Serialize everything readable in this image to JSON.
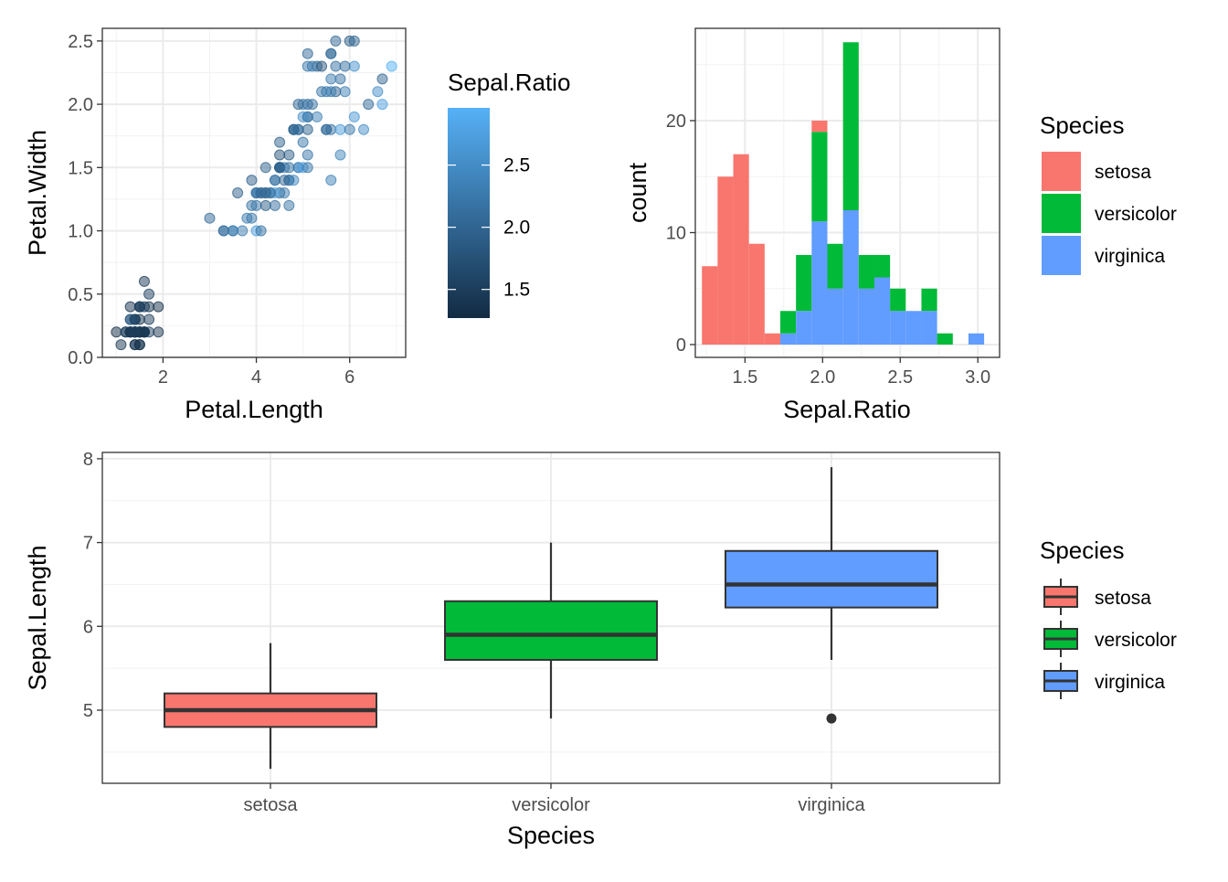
{
  "colors": {
    "setosa": "#F8766D",
    "versicolor": "#00BA38",
    "virginica": "#619CFF",
    "gradient_low": "#132B43",
    "gradient_high": "#56B1F7"
  },
  "chart_data": [
    {
      "type": "scatter",
      "xlabel": "Petal.Length",
      "ylabel": "Petal.Width",
      "xlim": [
        0.7,
        7.2
      ],
      "ylim": [
        0,
        2.6
      ],
      "xticks": [
        2,
        4,
        6
      ],
      "xtick_labels": [
        "2",
        "4",
        "6"
      ],
      "yticks": [
        0,
        0.5,
        1,
        1.5,
        2,
        2.5
      ],
      "ytick_labels": [
        "0.0",
        "0.5",
        "1.0",
        "1.5",
        "2.0",
        "2.5"
      ],
      "color_scale": {
        "title": "Sepal.Ratio",
        "min": 1.27,
        "max": 2.96,
        "ticks": [
          1.5,
          2.0,
          2.5
        ],
        "tick_labels": [
          "1.5",
          "2.0",
          "2.5"
        ]
      },
      "grid": true,
      "legend_position": "right",
      "points": [
        {
          "x": 1.4,
          "y": 0.2,
          "c": 1.46
        },
        {
          "x": 1.4,
          "y": 0.2,
          "c": 1.63
        },
        {
          "x": 1.3,
          "y": 0.2,
          "c": 1.47
        },
        {
          "x": 1.5,
          "y": 0.2,
          "c": 1.48
        },
        {
          "x": 1.4,
          "y": 0.2,
          "c": 1.39
        },
        {
          "x": 1.7,
          "y": 0.4,
          "c": 1.38
        },
        {
          "x": 1.4,
          "y": 0.3,
          "c": 1.35
        },
        {
          "x": 1.5,
          "y": 0.2,
          "c": 1.47
        },
        {
          "x": 1.4,
          "y": 0.2,
          "c": 1.52
        },
        {
          "x": 1.5,
          "y": 0.1,
          "c": 1.58
        },
        {
          "x": 1.5,
          "y": 0.2,
          "c": 1.46
        },
        {
          "x": 1.6,
          "y": 0.2,
          "c": 1.41
        },
        {
          "x": 1.4,
          "y": 0.1,
          "c": 1.6
        },
        {
          "x": 1.1,
          "y": 0.1,
          "c": 1.43
        },
        {
          "x": 1.2,
          "y": 0.2,
          "c": 1.45
        },
        {
          "x": 1.5,
          "y": 0.4,
          "c": 1.3
        },
        {
          "x": 1.3,
          "y": 0.4,
          "c": 1.38
        },
        {
          "x": 1.4,
          "y": 0.3,
          "c": 1.46
        },
        {
          "x": 1.7,
          "y": 0.3,
          "c": 1.5
        },
        {
          "x": 1.5,
          "y": 0.3,
          "c": 1.34
        },
        {
          "x": 1.7,
          "y": 0.2,
          "c": 1.59
        },
        {
          "x": 1.5,
          "y": 0.4,
          "c": 1.38
        },
        {
          "x": 1.0,
          "y": 0.2,
          "c": 1.28
        },
        {
          "x": 1.7,
          "y": 0.5,
          "c": 1.55
        },
        {
          "x": 1.9,
          "y": 0.2,
          "c": 1.41
        },
        {
          "x": 1.6,
          "y": 0.2,
          "c": 1.67
        },
        {
          "x": 1.6,
          "y": 0.4,
          "c": 1.47
        },
        {
          "x": 1.5,
          "y": 0.2,
          "c": 1.49
        },
        {
          "x": 1.4,
          "y": 0.2,
          "c": 1.53
        },
        {
          "x": 1.6,
          "y": 0.2,
          "c": 1.47
        },
        {
          "x": 1.6,
          "y": 0.2,
          "c": 1.55
        },
        {
          "x": 1.5,
          "y": 0.4,
          "c": 1.59
        },
        {
          "x": 1.5,
          "y": 0.1,
          "c": 1.27
        },
        {
          "x": 1.4,
          "y": 0.2,
          "c": 1.31
        },
        {
          "x": 1.5,
          "y": 0.2,
          "c": 1.58
        },
        {
          "x": 1.2,
          "y": 0.2,
          "c": 1.56
        },
        {
          "x": 1.3,
          "y": 0.2,
          "c": 1.57
        },
        {
          "x": 1.4,
          "y": 0.1,
          "c": 1.36
        },
        {
          "x": 1.3,
          "y": 0.2,
          "c": 1.47
        },
        {
          "x": 1.5,
          "y": 0.2,
          "c": 1.5
        },
        {
          "x": 1.3,
          "y": 0.3,
          "c": 1.43
        },
        {
          "x": 1.3,
          "y": 0.3,
          "c": 1.96
        },
        {
          "x": 1.3,
          "y": 0.2,
          "c": 1.38
        },
        {
          "x": 1.6,
          "y": 0.6,
          "c": 1.43
        },
        {
          "x": 1.9,
          "y": 0.4,
          "c": 1.34
        },
        {
          "x": 1.4,
          "y": 0.3,
          "c": 1.6
        },
        {
          "x": 1.6,
          "y": 0.2,
          "c": 1.34
        },
        {
          "x": 1.4,
          "y": 0.2,
          "c": 1.44
        },
        {
          "x": 1.5,
          "y": 0.2,
          "c": 1.43
        },
        {
          "x": 1.4,
          "y": 0.2,
          "c": 1.52
        },
        {
          "x": 4.7,
          "y": 1.4,
          "c": 2.19
        },
        {
          "x": 4.5,
          "y": 1.5,
          "c": 2.0
        },
        {
          "x": 4.9,
          "y": 1.5,
          "c": 2.23
        },
        {
          "x": 4.0,
          "y": 1.3,
          "c": 2.39
        },
        {
          "x": 4.6,
          "y": 1.5,
          "c": 2.32
        },
        {
          "x": 4.5,
          "y": 1.3,
          "c": 2.0
        },
        {
          "x": 4.7,
          "y": 1.6,
          "c": 1.91
        },
        {
          "x": 3.3,
          "y": 1.0,
          "c": 2.04
        },
        {
          "x": 4.6,
          "y": 1.3,
          "c": 2.28
        },
        {
          "x": 3.9,
          "y": 1.4,
          "c": 1.93
        },
        {
          "x": 3.5,
          "y": 1.0,
          "c": 2.5
        },
        {
          "x": 4.2,
          "y": 1.5,
          "c": 1.97
        },
        {
          "x": 4.0,
          "y": 1.0,
          "c": 2.73
        },
        {
          "x": 4.7,
          "y": 1.4,
          "c": 2.1
        },
        {
          "x": 3.6,
          "y": 1.3,
          "c": 1.93
        },
        {
          "x": 4.4,
          "y": 1.4,
          "c": 2.16
        },
        {
          "x": 4.5,
          "y": 1.5,
          "c": 1.87
        },
        {
          "x": 4.1,
          "y": 1.0,
          "c": 2.15
        },
        {
          "x": 4.5,
          "y": 1.5,
          "c": 2.82
        },
        {
          "x": 3.9,
          "y": 1.1,
          "c": 2.24
        },
        {
          "x": 4.8,
          "y": 1.8,
          "c": 1.84
        },
        {
          "x": 4.0,
          "y": 1.3,
          "c": 2.18
        },
        {
          "x": 4.9,
          "y": 1.5,
          "c": 2.52
        },
        {
          "x": 4.7,
          "y": 1.2,
          "c": 2.18
        },
        {
          "x": 4.3,
          "y": 1.3,
          "c": 2.21
        },
        {
          "x": 4.4,
          "y": 1.4,
          "c": 2.2
        },
        {
          "x": 4.8,
          "y": 1.4,
          "c": 2.43
        },
        {
          "x": 5.0,
          "y": 1.7,
          "c": 2.23
        },
        {
          "x": 4.5,
          "y": 1.5,
          "c": 2.07
        },
        {
          "x": 3.5,
          "y": 1.0,
          "c": 2.19
        },
        {
          "x": 3.8,
          "y": 1.1,
          "c": 2.29
        },
        {
          "x": 3.7,
          "y": 1.0,
          "c": 2.29
        },
        {
          "x": 3.9,
          "y": 1.2,
          "c": 2.15
        },
        {
          "x": 5.1,
          "y": 1.6,
          "c": 2.22
        },
        {
          "x": 4.5,
          "y": 1.5,
          "c": 1.8
        },
        {
          "x": 4.5,
          "y": 1.6,
          "c": 1.76
        },
        {
          "x": 4.7,
          "y": 1.5,
          "c": 2.16
        },
        {
          "x": 4.4,
          "y": 1.3,
          "c": 2.74
        },
        {
          "x": 4.1,
          "y": 1.3,
          "c": 1.87
        },
        {
          "x": 4.0,
          "y": 1.3,
          "c": 2.2
        },
        {
          "x": 4.4,
          "y": 1.2,
          "c": 2.12
        },
        {
          "x": 4.6,
          "y": 1.4,
          "c": 2.03
        },
        {
          "x": 4.0,
          "y": 1.2,
          "c": 2.23
        },
        {
          "x": 3.3,
          "y": 1.0,
          "c": 2.17
        },
        {
          "x": 4.2,
          "y": 1.3,
          "c": 2.07
        },
        {
          "x": 4.2,
          "y": 1.2,
          "c": 1.9
        },
        {
          "x": 4.2,
          "y": 1.3,
          "c": 1.97
        },
        {
          "x": 4.3,
          "y": 1.3,
          "c": 2.1
        },
        {
          "x": 3.0,
          "y": 1.1,
          "c": 2.04
        },
        {
          "x": 4.1,
          "y": 1.3,
          "c": 2.04
        },
        {
          "x": 6.0,
          "y": 2.5,
          "c": 1.91
        },
        {
          "x": 5.1,
          "y": 1.9,
          "c": 2.15
        },
        {
          "x": 5.9,
          "y": 2.1,
          "c": 2.37
        },
        {
          "x": 5.6,
          "y": 1.8,
          "c": 2.17
        },
        {
          "x": 5.8,
          "y": 2.2,
          "c": 2.17
        },
        {
          "x": 6.6,
          "y": 2.1,
          "c": 2.53
        },
        {
          "x": 4.5,
          "y": 1.7,
          "c": 1.96
        },
        {
          "x": 6.3,
          "y": 1.8,
          "c": 2.52
        },
        {
          "x": 5.8,
          "y": 1.8,
          "c": 2.68
        },
        {
          "x": 6.1,
          "y": 2.5,
          "c": 2.0
        },
        {
          "x": 5.1,
          "y": 2.0,
          "c": 2.03
        },
        {
          "x": 5.3,
          "y": 1.9,
          "c": 2.37
        },
        {
          "x": 5.5,
          "y": 2.1,
          "c": 2.27
        },
        {
          "x": 5.0,
          "y": 2.0,
          "c": 2.28
        },
        {
          "x": 5.1,
          "y": 2.4,
          "c": 2.07
        },
        {
          "x": 5.3,
          "y": 2.3,
          "c": 2.0
        },
        {
          "x": 5.5,
          "y": 1.8,
          "c": 2.17
        },
        {
          "x": 6.7,
          "y": 2.2,
          "c": 2.03
        },
        {
          "x": 6.9,
          "y": 2.3,
          "c": 2.96
        },
        {
          "x": 5.0,
          "y": 1.5,
          "c": 2.73
        },
        {
          "x": 5.7,
          "y": 2.3,
          "c": 2.16
        },
        {
          "x": 4.9,
          "y": 2.0,
          "c": 2.0
        },
        {
          "x": 6.7,
          "y": 2.0,
          "c": 2.75
        },
        {
          "x": 4.9,
          "y": 1.8,
          "c": 2.33
        },
        {
          "x": 5.7,
          "y": 2.1,
          "c": 2.03
        },
        {
          "x": 6.0,
          "y": 1.8,
          "c": 2.25
        },
        {
          "x": 4.8,
          "y": 1.8,
          "c": 2.21
        },
        {
          "x": 4.9,
          "y": 1.8,
          "c": 2.03
        },
        {
          "x": 5.6,
          "y": 2.1,
          "c": 2.29
        },
        {
          "x": 5.8,
          "y": 1.6,
          "c": 2.4
        },
        {
          "x": 6.1,
          "y": 1.9,
          "c": 2.64
        },
        {
          "x": 6.4,
          "y": 2.0,
          "c": 2.08
        },
        {
          "x": 5.6,
          "y": 2.2,
          "c": 2.29
        },
        {
          "x": 5.1,
          "y": 1.5,
          "c": 2.25
        },
        {
          "x": 5.6,
          "y": 1.4,
          "c": 2.35
        },
        {
          "x": 6.1,
          "y": 2.3,
          "c": 2.57
        },
        {
          "x": 5.6,
          "y": 2.4,
          "c": 1.85
        },
        {
          "x": 5.5,
          "y": 1.8,
          "c": 2.06
        },
        {
          "x": 4.8,
          "y": 1.8,
          "c": 2.0
        },
        {
          "x": 5.4,
          "y": 2.1,
          "c": 2.23
        },
        {
          "x": 5.6,
          "y": 2.4,
          "c": 2.16
        },
        {
          "x": 5.1,
          "y": 2.3,
          "c": 2.23
        },
        {
          "x": 5.1,
          "y": 1.9,
          "c": 2.15
        },
        {
          "x": 5.9,
          "y": 2.3,
          "c": 2.13
        },
        {
          "x": 5.7,
          "y": 2.5,
          "c": 2.03
        },
        {
          "x": 5.2,
          "y": 2.3,
          "c": 2.23
        },
        {
          "x": 5.0,
          "y": 1.9,
          "c": 2.52
        },
        {
          "x": 5.2,
          "y": 2.0,
          "c": 2.17
        },
        {
          "x": 5.4,
          "y": 2.3,
          "c": 1.82
        },
        {
          "x": 5.1,
          "y": 1.8,
          "c": 1.97
        }
      ]
    },
    {
      "type": "bar",
      "subtype": "stacked-histogram",
      "xlabel": "Sepal.Ratio",
      "ylabel": "count",
      "xlim": [
        1.18,
        3.14
      ],
      "ylim": [
        0,
        27
      ],
      "xticks": [
        1.5,
        2.0,
        2.5,
        3.0
      ],
      "xtick_labels": [
        "1.5",
        "2.0",
        "2.5",
        "3.0"
      ],
      "yticks": [
        0,
        10,
        20
      ],
      "ytick_labels": [
        "0",
        "10",
        "20"
      ],
      "grid": true,
      "legend_title": "Species",
      "legend_position": "right",
      "bins": [
        1.273,
        1.374,
        1.475,
        1.576,
        1.677,
        1.778,
        1.879,
        1.98,
        2.081,
        2.182,
        2.283,
        2.384,
        2.485,
        2.586,
        2.687,
        2.788,
        2.889,
        2.99
      ],
      "bin_width": 0.101,
      "series": [
        {
          "name": "setosa",
          "values": [
            7,
            15,
            17,
            9,
            1,
            0,
            0,
            1,
            0,
            0,
            0,
            0,
            0,
            0,
            0,
            0,
            0,
            0
          ]
        },
        {
          "name": "versicolor",
          "values": [
            0,
            0,
            0,
            0,
            0,
            2,
            5,
            8,
            4,
            15,
            3,
            2,
            2,
            0,
            2,
            1,
            0,
            0
          ]
        },
        {
          "name": "virginica",
          "values": [
            0,
            0,
            0,
            0,
            0,
            1,
            3,
            11,
            5,
            12,
            5,
            6,
            3,
            3,
            3,
            0,
            0,
            1
          ]
        }
      ]
    },
    {
      "type": "box",
      "xlabel": "Species",
      "ylabel": "Sepal.Length",
      "categories": [
        "setosa",
        "versicolor",
        "virginica"
      ],
      "ylim": [
        4.2,
        8.06
      ],
      "yticks": [
        5,
        6,
        7,
        8
      ],
      "ytick_labels": [
        "5",
        "6",
        "7",
        "8"
      ],
      "grid": true,
      "legend_title": "Species",
      "legend_position": "right",
      "boxes": [
        {
          "name": "setosa",
          "lower_whisker": 4.3,
          "q1": 4.8,
          "median": 5.0,
          "q3": 5.2,
          "upper_whisker": 5.8,
          "outliers": []
        },
        {
          "name": "versicolor",
          "lower_whisker": 4.9,
          "q1": 5.6,
          "median": 5.9,
          "q3": 6.3,
          "upper_whisker": 7.0,
          "outliers": []
        },
        {
          "name": "virginica",
          "lower_whisker": 5.6,
          "q1": 6.225,
          "median": 6.5,
          "q3": 6.9,
          "upper_whisker": 7.9,
          "outliers": [
            4.9
          ]
        }
      ]
    }
  ]
}
